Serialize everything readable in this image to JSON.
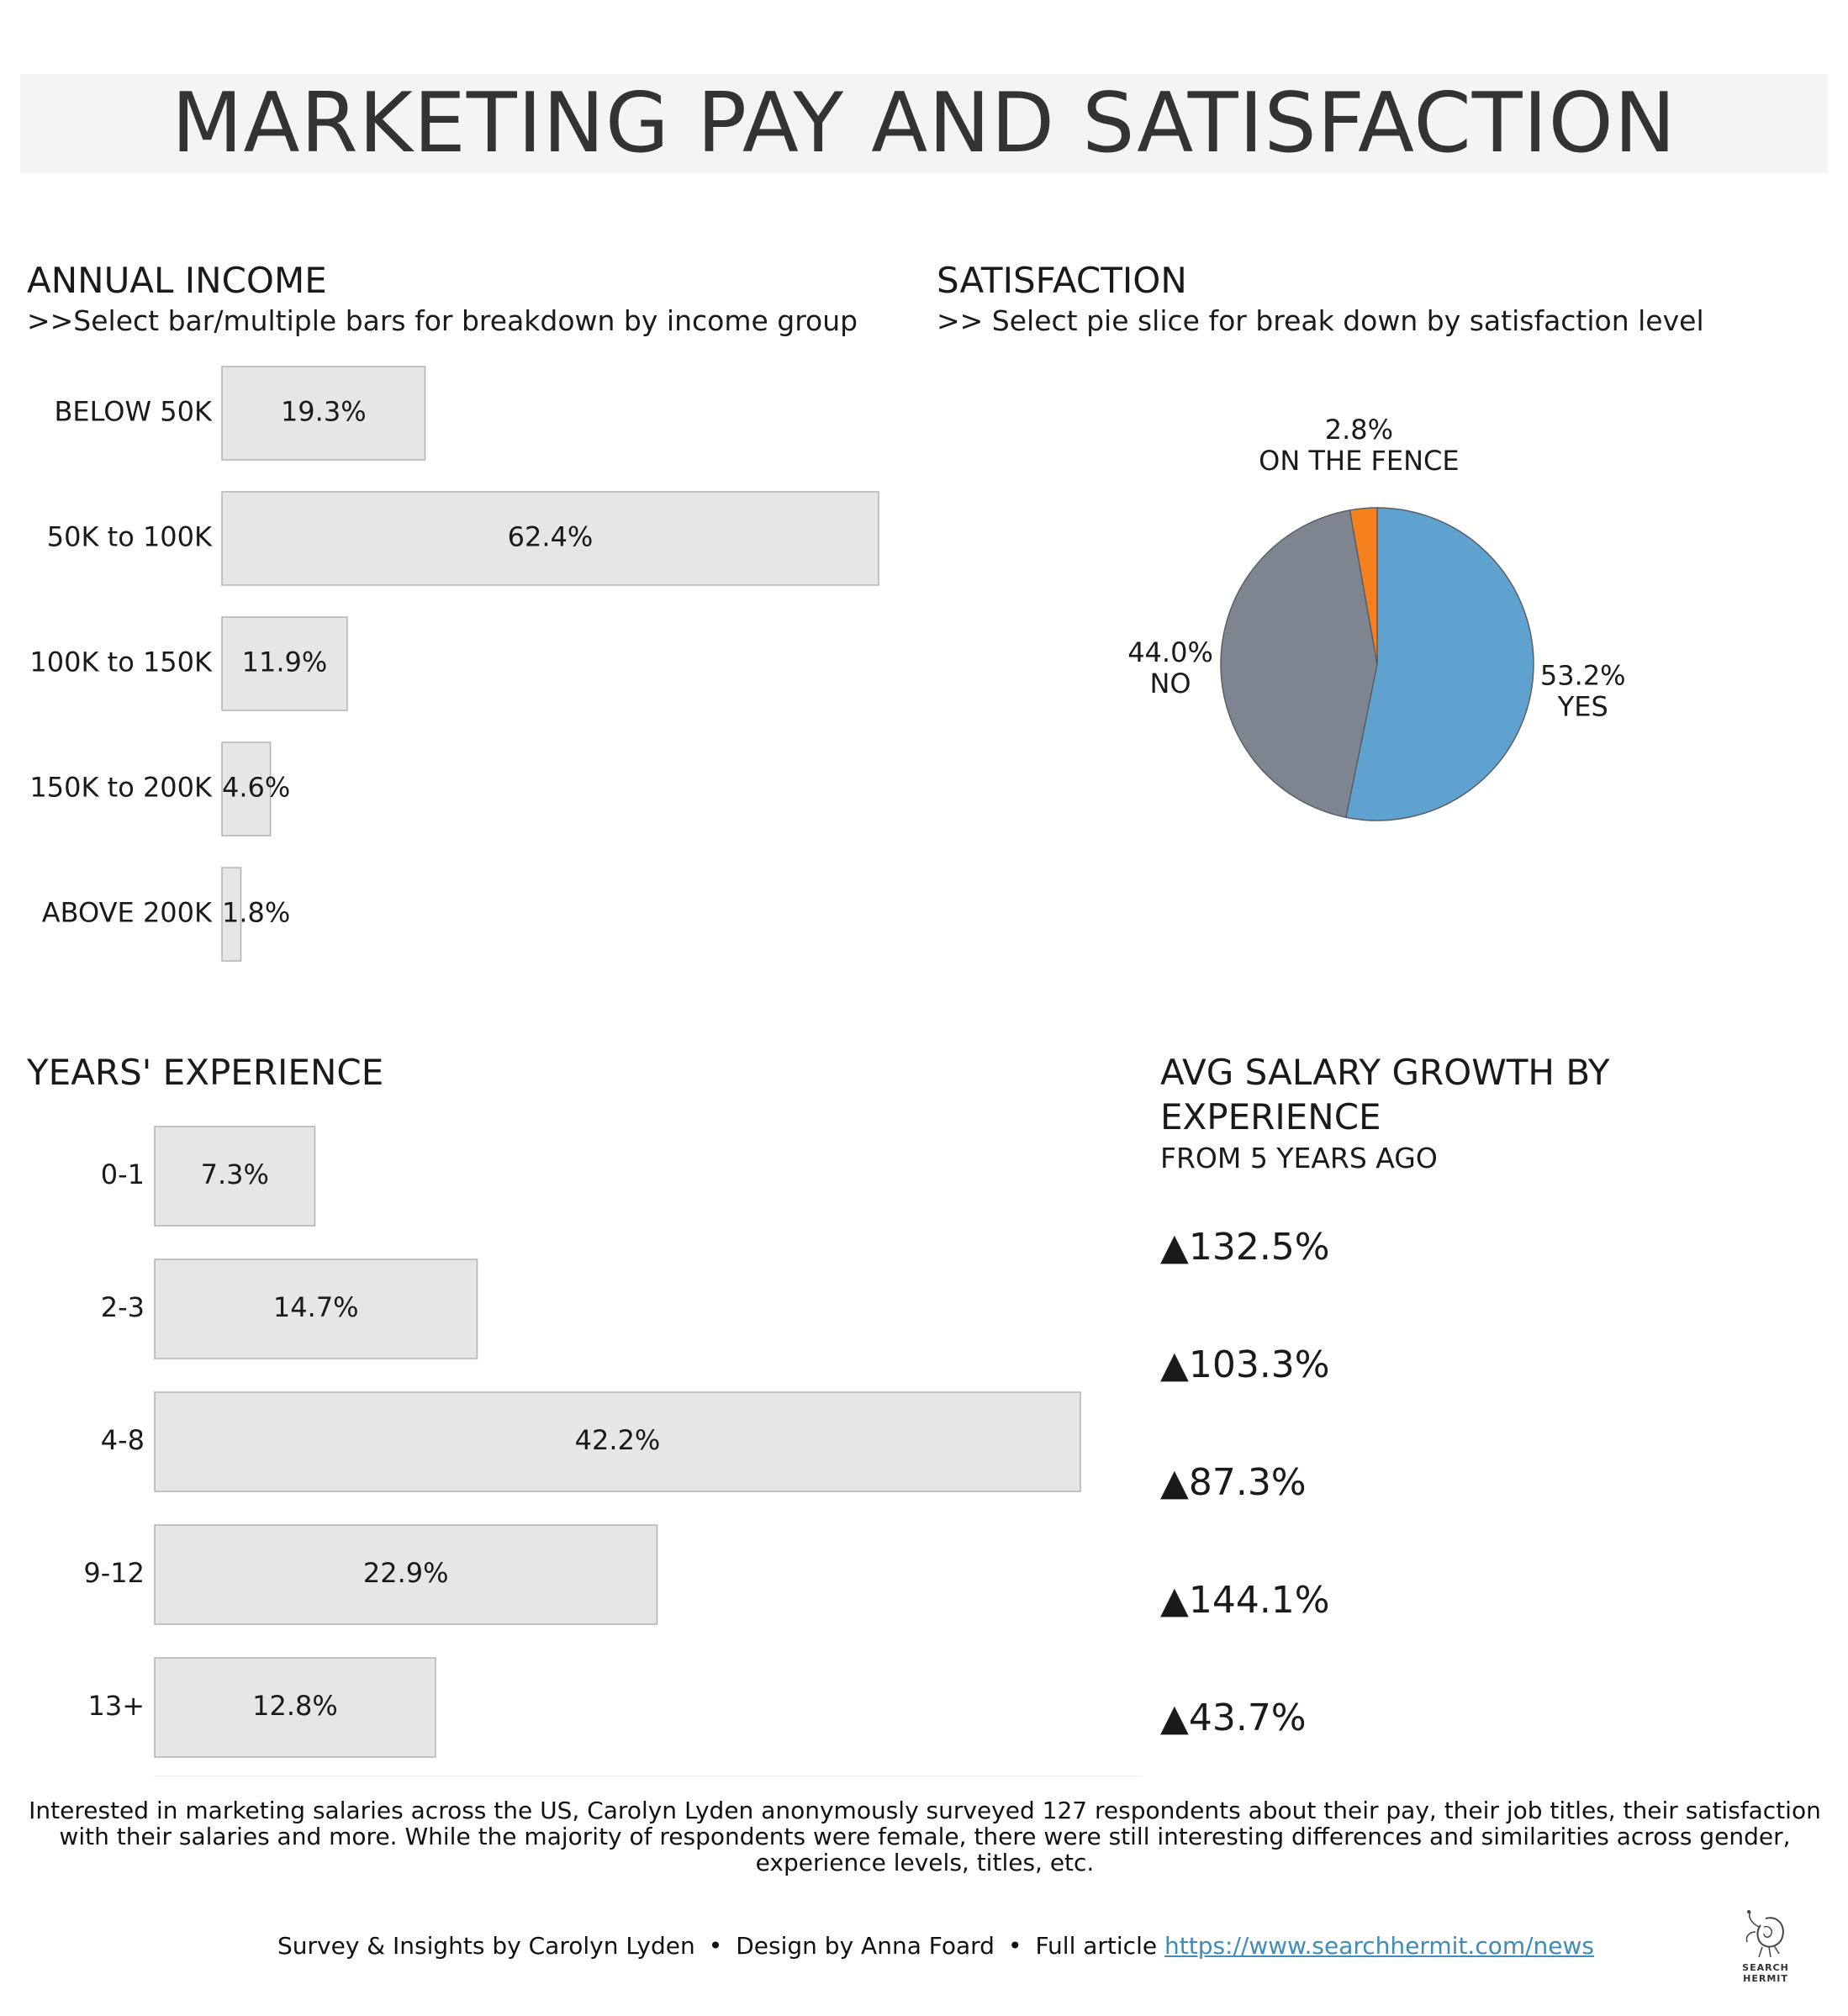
{
  "title": "MARKETING PAY AND SATISFACTION",
  "income": {
    "title": "ANNUAL INCOME",
    "subtitle": ">>Select bar/multiple bars for breakdown by income group"
  },
  "satisfaction": {
    "title": "SATISFACTION",
    "subtitle": ">> Select pie slice for break down by satisfaction level"
  },
  "experience": {
    "title": "YEARS' EXPERIENCE"
  },
  "growth": {
    "title": "AVG SALARY GROWTH BY EXPERIENCE",
    "subtitle": "FROM 5 YEARS AGO",
    "values": [
      "▲132.5%",
      "▲103.3%",
      "▲87.3%",
      "▲144.1%",
      "▲43.7%"
    ]
  },
  "description": "Interested in marketing salaries across the US, Carolyn Lyden anonymously surveyed 127 respondents about their pay, their job titles, their satisfaction with their salaries and more. While the majority of respondents were female, there were still interesting differences and similarities across gender, experience levels, titles, etc.",
  "footer": {
    "credit1": "Survey & Insights by Carolyn Lyden",
    "separator": "•",
    "credit2": "Design by Anna Foard",
    "article_label": "Full article",
    "article_link": "https://www.searchhermit.com/news"
  },
  "logo": {
    "icon": "hermit-crab-icon",
    "text": "SEARCH HERMIT"
  },
  "chart_data": [
    {
      "type": "bar",
      "orientation": "horizontal",
      "categories": [
        "BELOW 50K",
        "50K to 100K",
        "100K to 150K",
        "150K to 200K",
        "ABOVE 200K"
      ],
      "values": [
        19.3,
        62.4,
        11.9,
        4.6,
        1.8
      ],
      "labels": [
        "19.3%",
        "62.4%",
        "11.9%",
        "4.6%",
        "1.8%"
      ],
      "color": "#e6e6e6",
      "xlim": [
        0,
        62.4
      ]
    },
    {
      "type": "pie",
      "slices": [
        {
          "name": "YES",
          "value": 53.2,
          "label": "53.2%",
          "color": "#5fa2cf"
        },
        {
          "name": "NO",
          "value": 44.0,
          "label": "44.0%",
          "color": "#7f8590"
        },
        {
          "name": "ON THE FENCE",
          "value": 2.8,
          "label": "2.8%",
          "color": "#f7801e"
        }
      ]
    },
    {
      "type": "bar",
      "orientation": "horizontal",
      "categories": [
        "0-1",
        "2-3",
        "4-8",
        "9-12",
        "13+"
      ],
      "values": [
        7.3,
        14.7,
        42.2,
        22.9,
        12.8
      ],
      "labels": [
        "7.3%",
        "14.7%",
        "42.2%",
        "22.9%",
        "12.8%"
      ],
      "color": "#e6e6e6",
      "xlim": [
        0,
        42.2
      ]
    }
  ]
}
